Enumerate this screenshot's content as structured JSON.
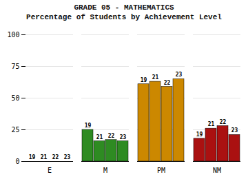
{
  "chart_data": {
    "type": "bar",
    "title": "GRADE 05 - MATHEMATICS",
    "subtitle": "Percentage of Students by Achievement Level",
    "categories": [
      "E",
      "M",
      "PM",
      "NM"
    ],
    "series": [
      {
        "name": "19",
        "values": [
          0,
          25,
          61,
          18
        ]
      },
      {
        "name": "21",
        "values": [
          0,
          16,
          63,
          26
        ]
      },
      {
        "name": "22",
        "values": [
          0,
          17,
          59,
          28
        ]
      },
      {
        "name": "23",
        "values": [
          0,
          16,
          65,
          21
        ]
      }
    ],
    "colors": [
      "#2E8B22",
      "#2E8B22",
      "#CC8800",
      "#AA1111"
    ],
    "ylim": [
      0,
      100
    ],
    "yticks": [
      0,
      25,
      50,
      75,
      100
    ],
    "grid": true
  }
}
